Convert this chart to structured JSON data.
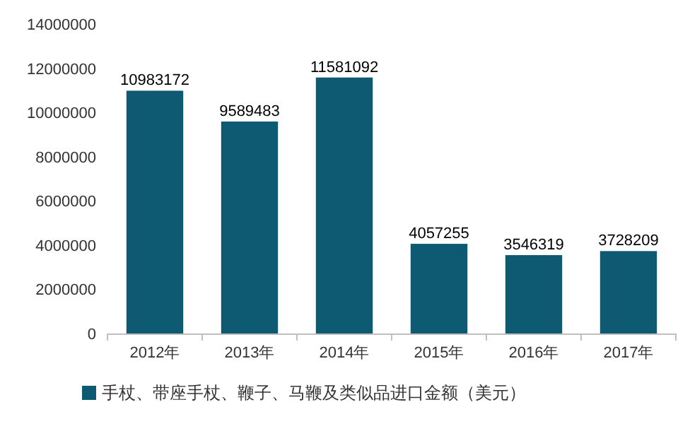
{
  "chart_data": {
    "type": "bar",
    "categories": [
      "2012年",
      "2013年",
      "2014年",
      "2015年",
      "2016年",
      "2017年"
    ],
    "series": [
      {
        "name": "手杖、带座手杖、鞭子、马鞭及类似品进口金额（美元）",
        "color": "#0f5a73",
        "values": [
          10983172,
          9589483,
          11581092,
          4057255,
          3546319,
          3728209
        ]
      }
    ],
    "ylim": [
      0,
      14000000
    ],
    "yticks": [
      0,
      2000000,
      4000000,
      6000000,
      8000000,
      10000000,
      12000000,
      14000000
    ],
    "data_labels": true,
    "legend": "bottom"
  }
}
